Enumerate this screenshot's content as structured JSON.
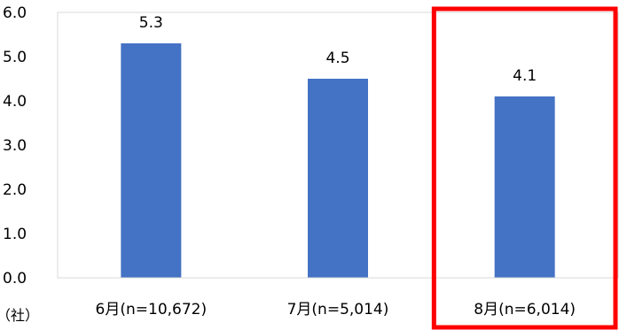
{
  "chart_data": {
    "type": "bar",
    "categories": [
      "6月(n=10,672)",
      "7月(n=5,014)",
      "8月(n=6,014)"
    ],
    "values": [
      5.3,
      4.5,
      4.1
    ],
    "value_labels": [
      "5.3",
      "4.5",
      "4.1"
    ],
    "ylim": [
      0,
      6
    ],
    "yticks": [
      "0.0",
      "1.0",
      "2.0",
      "3.0",
      "4.0",
      "5.0",
      "6.0"
    ],
    "unit_label": "（社）",
    "grid": false,
    "bar_color": "#4472c4",
    "highlight": {
      "category_index": 2,
      "color": "#ff0000"
    }
  }
}
